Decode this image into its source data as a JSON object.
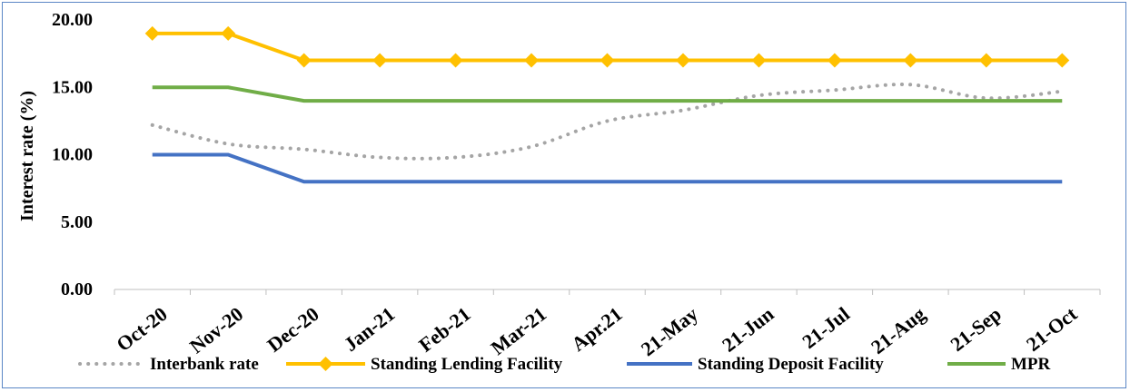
{
  "chart_data": {
    "type": "line",
    "ylabel": "Interest rate (%)",
    "xlabel": "",
    "ylim": [
      0,
      20
    ],
    "yticks": [
      0,
      5,
      10,
      15,
      20
    ],
    "ytick_labels": [
      "0.00",
      "5.00",
      "10.00",
      "15.00",
      "20.00"
    ],
    "categories": [
      "Oct-20",
      "Nov-20",
      "Dec-20",
      "Jan-21",
      "Feb-21",
      "Mar-21",
      "Apr.21",
      "21-May",
      "21-Jun",
      "21-Jul",
      "21-Aug",
      "21-Sep",
      "21-Oct"
    ],
    "legend_position": "bottom",
    "grid": false,
    "series": [
      {
        "name": "Interbank rate",
        "color": "#a5a5a5",
        "style": "dotted",
        "marker": "none",
        "values": [
          12.2,
          10.8,
          10.4,
          9.8,
          9.8,
          10.6,
          12.5,
          13.3,
          14.4,
          14.8,
          15.2,
          14.2,
          14.7
        ]
      },
      {
        "name": "Standing Lending Facility",
        "color": "#ffc000",
        "style": "solid",
        "marker": "diamond",
        "values": [
          19,
          19,
          17,
          17,
          17,
          17,
          17,
          17,
          17,
          17,
          17,
          17,
          17
        ]
      },
      {
        "name": "Standing Deposit Facility",
        "color": "#4472c4",
        "style": "solid",
        "marker": "none",
        "values": [
          10,
          10,
          8,
          8,
          8,
          8,
          8,
          8,
          8,
          8,
          8,
          8,
          8
        ]
      },
      {
        "name": "MPR",
        "color": "#70ad47",
        "style": "solid",
        "marker": "none",
        "values": [
          15,
          15,
          14,
          14,
          14,
          14,
          14,
          14,
          14,
          14,
          14,
          14,
          14
        ]
      }
    ]
  }
}
